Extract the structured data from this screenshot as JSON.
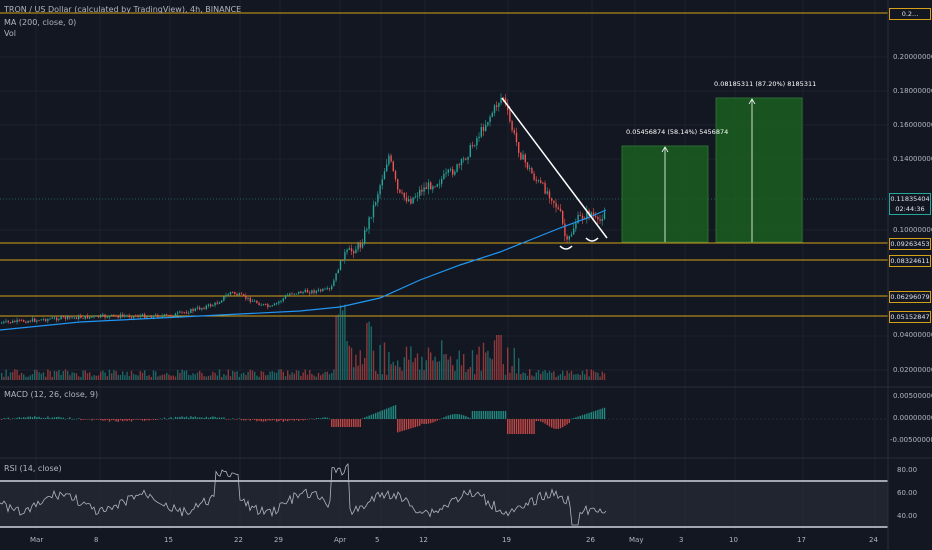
{
  "header": {
    "symbol": "TRON / US Dollar (calculated by TradingView), 4h, BINANCE",
    "ma_label": "MA (200, close, 0)",
    "vol_label": "Vol",
    "macd_label": "MACD (12, 26, close, 9)",
    "rsi_label": "RSI (14, close)"
  },
  "price_axis": [
    "0.20000000",
    "0.18000000",
    "0.16000000",
    "0.14000000",
    "0.10000000",
    "0.04000000",
    "0.02000000"
  ],
  "top_badge": "0.2...",
  "current_price": {
    "value": "0.11835404",
    "countdown": "02:44:36"
  },
  "levels": [
    "0.09263453",
    "0.08324611",
    "0.06296079",
    "0.05152847"
  ],
  "macd_axis": [
    "0.00500000",
    "0.00000000",
    "-0.00500000"
  ],
  "rsi_axis": [
    "80.00",
    "60.00",
    "40.00"
  ],
  "time_axis": [
    "Mar",
    "8",
    "15",
    "22",
    "29",
    "Apr",
    "5",
    "12",
    "19",
    "26",
    "May",
    "3",
    "10",
    "17",
    "24"
  ],
  "targets": [
    {
      "label": "0.05456874 (58.14%) 5456874"
    },
    {
      "label": "0.08185311 (87.20%) 8185311"
    }
  ],
  "colors": {
    "bg": "#131722",
    "level": "#d4a017",
    "ma": "#2196f3",
    "target": "#1b5e20",
    "up": "#26a69a",
    "down": "#ef5350",
    "rsi": "#b2b5be"
  }
}
